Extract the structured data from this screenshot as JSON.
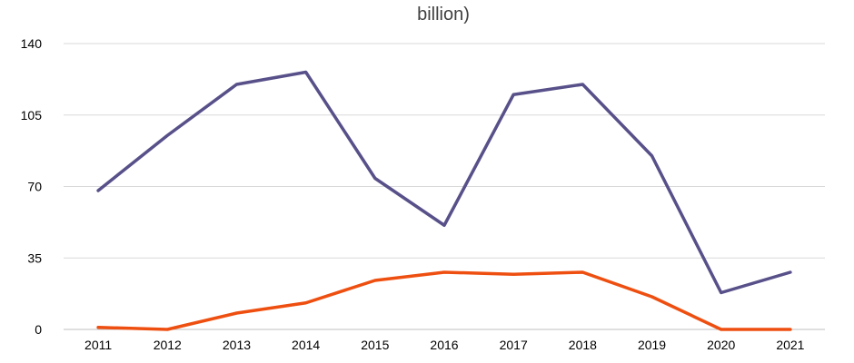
{
  "chart_data": {
    "type": "line",
    "title": "billion)",
    "xlabel": "",
    "ylabel": "",
    "categories": [
      "2011",
      "2012",
      "2013",
      "2014",
      "2015",
      "2016",
      "2017",
      "2018",
      "2019",
      "2020",
      "2021"
    ],
    "ylim": [
      0,
      140
    ],
    "yticks": [
      0,
      35,
      70,
      105,
      140
    ],
    "grid": true,
    "series": [
      {
        "color": "#575089",
        "values": [
          68,
          95,
          120,
          126,
          74,
          51,
          115,
          120,
          85,
          18,
          28
        ]
      },
      {
        "color": "#ee4f10",
        "values": [
          1,
          0,
          8,
          13,
          24,
          28,
          27,
          28,
          16,
          0,
          0
        ]
      }
    ]
  }
}
